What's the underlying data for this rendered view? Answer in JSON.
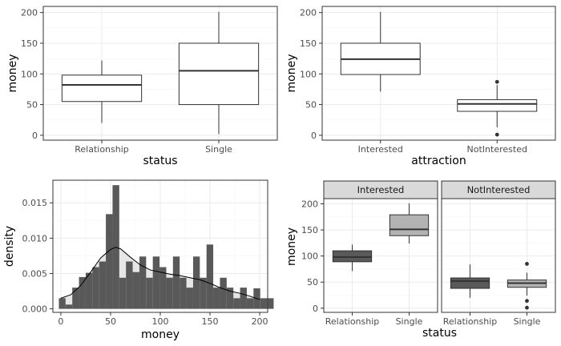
{
  "colors": {
    "panel_border": "#333333",
    "grid_major": "#ebebeb",
    "grid_minor": "#f5f5f5",
    "box_line": "#333333",
    "hist_fill": "#595959",
    "hist_white": "#e6e6e6",
    "strip_fill": "#d9d9d9",
    "fill_relationship": "#595959",
    "fill_single": "#b3b3b3"
  },
  "chart_data": [
    {
      "id": "box_status",
      "type": "box",
      "title": "",
      "xlabel": "status",
      "ylabel": "money",
      "ylim": [
        -8,
        210
      ],
      "yticks": [
        0,
        50,
        100,
        150,
        200
      ],
      "grid": true,
      "categories": [
        "Relationship",
        "Single"
      ],
      "boxes": [
        {
          "category": "Relationship",
          "whisker_low": 20,
          "q1": 55,
          "median": 82,
          "q3": 98,
          "whisker_high": 122,
          "outliers": []
        },
        {
          "category": "Single",
          "whisker_low": 2,
          "q1": 50,
          "median": 105,
          "q3": 150,
          "whisker_high": 201,
          "outliers": []
        }
      ]
    },
    {
      "id": "box_attraction",
      "type": "box",
      "title": "",
      "xlabel": "attraction",
      "ylabel": "money",
      "ylim": [
        -8,
        210
      ],
      "yticks": [
        0,
        50,
        100,
        150,
        200
      ],
      "grid": true,
      "categories": [
        "Interested",
        "NotInterested"
      ],
      "boxes": [
        {
          "category": "Interested",
          "whisker_low": 71,
          "q1": 99,
          "median": 124,
          "q3": 150,
          "whisker_high": 201,
          "outliers": []
        },
        {
          "category": "NotInterested",
          "whisker_low": 13,
          "q1": 39,
          "median": 51,
          "q3": 58,
          "whisker_high": 82,
          "outliers": [
            87,
            1
          ]
        }
      ]
    },
    {
      "id": "histogram",
      "type": "bar",
      "title": "",
      "xlabel": "money",
      "ylabel": "density",
      "xlim": [
        -8,
        208
      ],
      "ylim": [
        -0.0005,
        0.0182
      ],
      "xticks": [
        0,
        50,
        100,
        150,
        200
      ],
      "yticks": [
        0,
        0.005,
        0.01,
        0.015
      ],
      "ytick_labels": [
        "0.000",
        "0.005",
        "0.010",
        "0.015"
      ],
      "grid": true,
      "bin_start": -2,
      "bin_width": 6.75,
      "values": [
        0.0015,
        0.0006,
        0.003,
        0.0045,
        0.0051,
        0.0059,
        0.0067,
        0.0134,
        0.0175,
        0.0044,
        0.0067,
        0.0052,
        0.0074,
        0.0044,
        0.0074,
        0.0059,
        0.0044,
        0.0074,
        0.0044,
        0.003,
        0.0074,
        0.0044,
        0.0091,
        0.003,
        0.0044,
        0.003,
        0.0015,
        0.003,
        0.0015,
        0.0029,
        0.0015,
        0.0015
      ],
      "density_curve": [
        [
          0,
          0.0015
        ],
        [
          10,
          0.002
        ],
        [
          20,
          0.0033
        ],
        [
          30,
          0.0052
        ],
        [
          40,
          0.0072
        ],
        [
          50,
          0.0084
        ],
        [
          55,
          0.0087
        ],
        [
          60,
          0.0085
        ],
        [
          70,
          0.0073
        ],
        [
          80,
          0.0062
        ],
        [
          90,
          0.0055
        ],
        [
          100,
          0.0052
        ],
        [
          110,
          0.0049
        ],
        [
          120,
          0.0047
        ],
        [
          130,
          0.0044
        ],
        [
          140,
          0.0041
        ],
        [
          150,
          0.0036
        ],
        [
          160,
          0.003
        ],
        [
          170,
          0.0025
        ],
        [
          180,
          0.0022
        ],
        [
          190,
          0.0018
        ],
        [
          200,
          0.0013
        ]
      ]
    },
    {
      "id": "box_facet",
      "type": "box",
      "title": "",
      "xlabel": "status",
      "ylabel": "money",
      "ylim": [
        -8,
        210
      ],
      "yticks": [
        0,
        50,
        100,
        150,
        200
      ],
      "grid": true,
      "categories": [
        "Relationship",
        "Single"
      ],
      "facets": [
        {
          "label": "Interested",
          "boxes": [
            {
              "category": "Relationship",
              "whisker_low": 71,
              "q1": 89,
              "median": 98,
              "q3": 110,
              "whisker_high": 122,
              "outliers": []
            },
            {
              "category": "Single",
              "whisker_low": 124,
              "q1": 139,
              "median": 151,
              "q3": 179,
              "whisker_high": 201,
              "outliers": []
            }
          ]
        },
        {
          "label": "NotInterested",
          "boxes": [
            {
              "category": "Relationship",
              "whisker_low": 20,
              "q1": 38,
              "median": 52,
              "q3": 58,
              "whisker_high": 84,
              "outliers": []
            },
            {
              "category": "Single",
              "whisker_low": 24,
              "q1": 40,
              "median": 48,
              "q3": 54,
              "whisker_high": 68,
              "outliers": [
                85,
                14,
                1
              ]
            }
          ]
        }
      ]
    }
  ]
}
